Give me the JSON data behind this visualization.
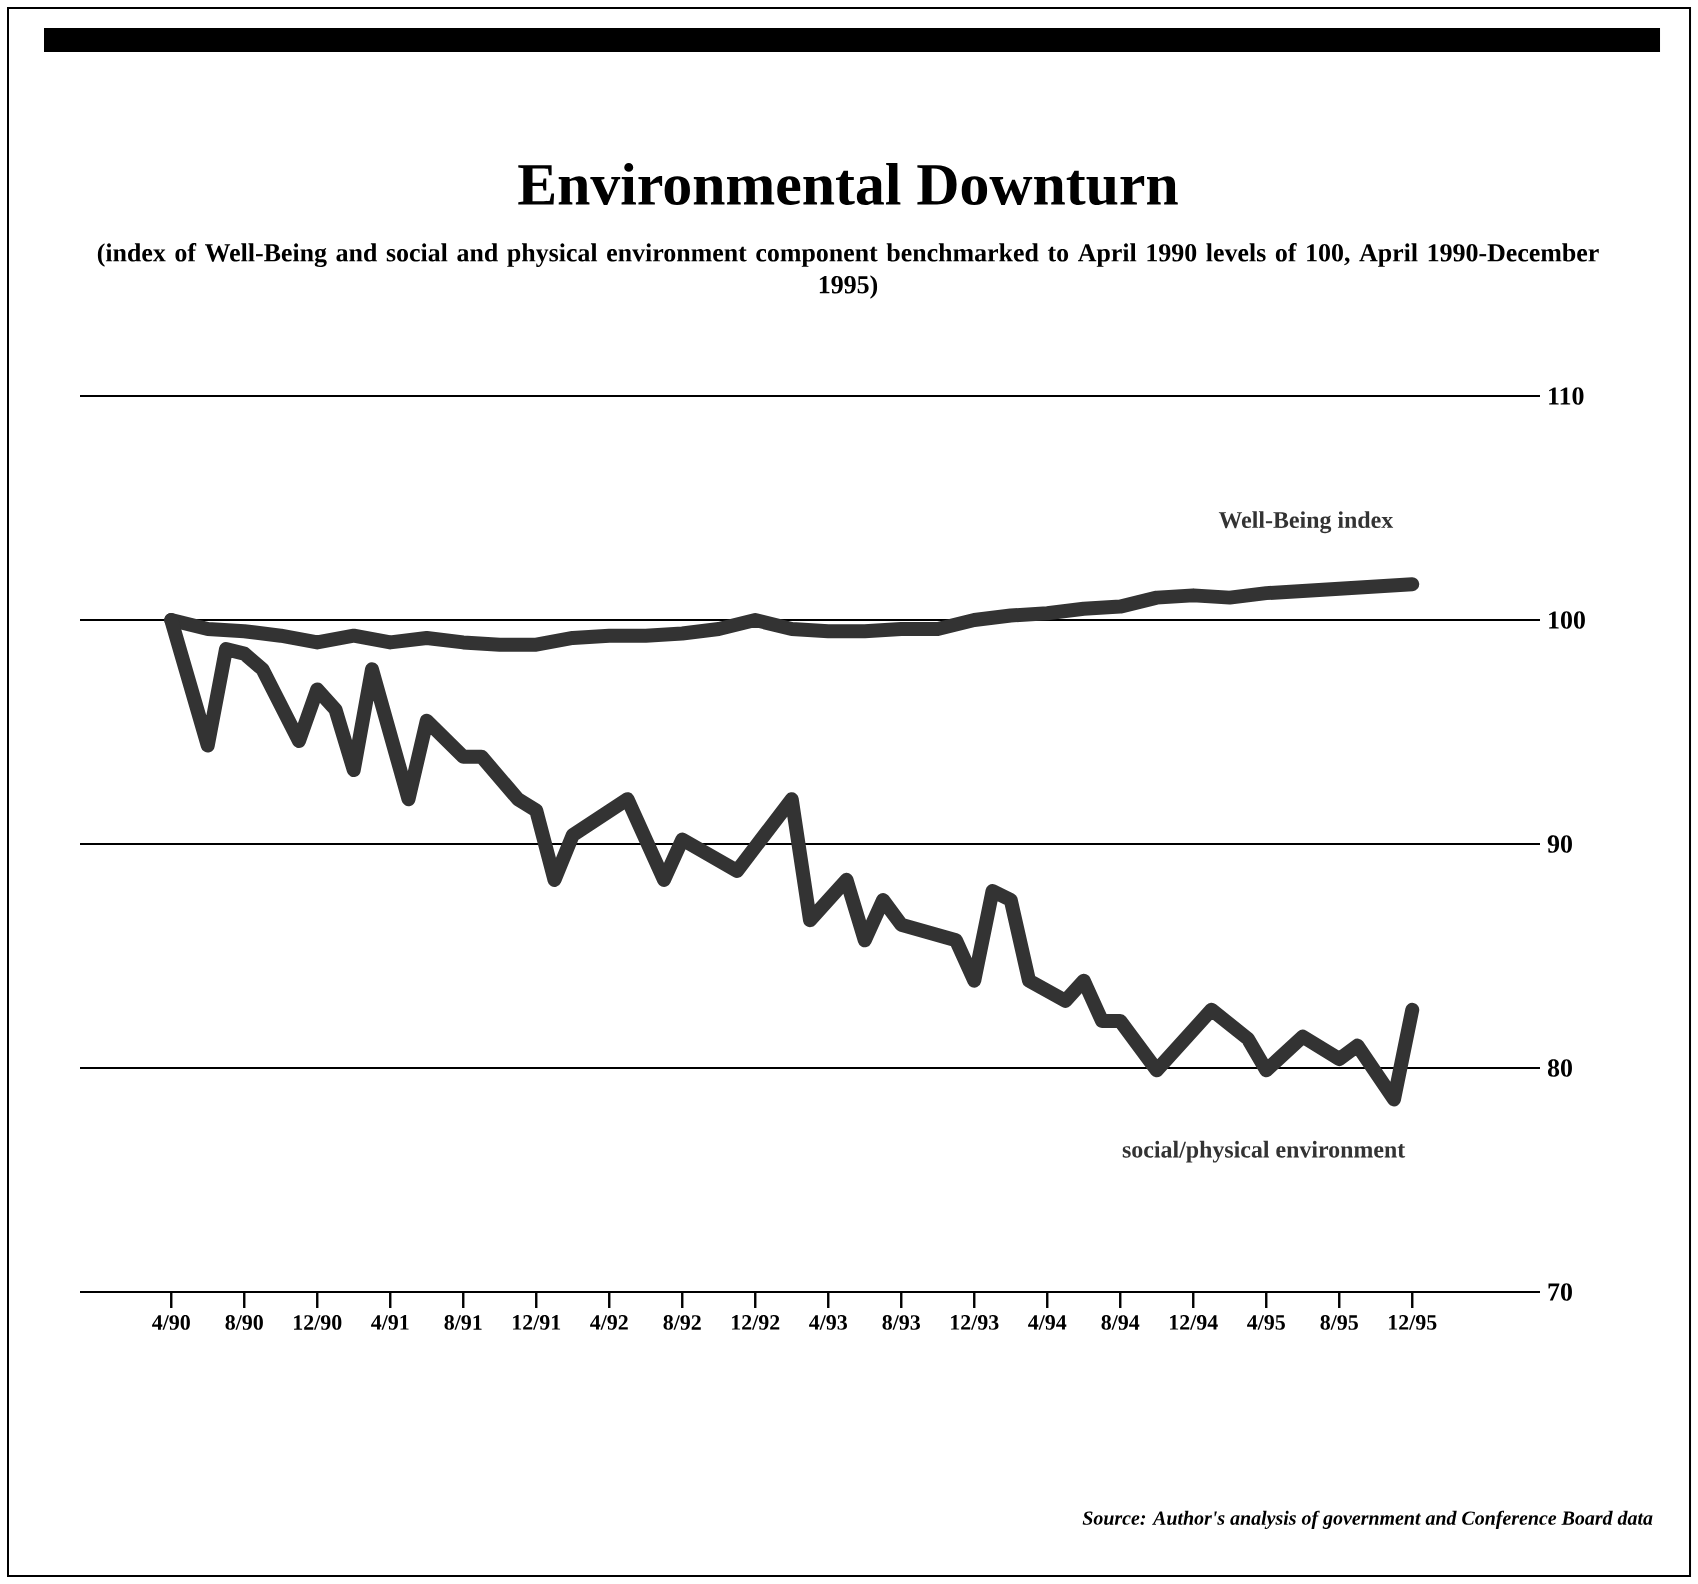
{
  "chart_data": {
    "type": "line",
    "title": "Environmental Downturn",
    "subtitle": "(index of Well-Being and social and physical environment component benchmarked to April 1990 levels of 100, April 1990-December 1995)",
    "xlim": [
      "1989-11",
      "1996-07"
    ],
    "xticks": [
      {
        "value": "1990-04",
        "label": "4/90"
      },
      {
        "value": "1990-08",
        "label": "8/90"
      },
      {
        "value": "1990-12",
        "label": "12/90"
      },
      {
        "value": "1991-04",
        "label": "4/91"
      },
      {
        "value": "1991-08",
        "label": "8/91"
      },
      {
        "value": "1991-12",
        "label": "12/91"
      },
      {
        "value": "1992-04",
        "label": "4/92"
      },
      {
        "value": "1992-08",
        "label": "8/92"
      },
      {
        "value": "1992-12",
        "label": "12/92"
      },
      {
        "value": "1993-04",
        "label": "4/93"
      },
      {
        "value": "1993-08",
        "label": "8/93"
      },
      {
        "value": "1993-12",
        "label": "12/93"
      },
      {
        "value": "1994-04",
        "label": "4/94"
      },
      {
        "value": "1994-08",
        "label": "8/94"
      },
      {
        "value": "1994-12",
        "label": "12/94"
      },
      {
        "value": "1995-04",
        "label": "4/95"
      },
      {
        "value": "1995-08",
        "label": "8/95"
      },
      {
        "value": "1995-12",
        "label": "12/95"
      }
    ],
    "ylim": [
      70,
      110
    ],
    "yticks": [
      70,
      80,
      90,
      100,
      110
    ],
    "grid": "y",
    "legend": false,
    "marker": "none",
    "line_style": "solid",
    "series": [
      {
        "name": "Well-Being index",
        "color": "#333333",
        "x": [
          "1990-04",
          "1990-06",
          "1990-08",
          "1990-10",
          "1990-12",
          "1991-02",
          "1991-04",
          "1991-06",
          "1991-08",
          "1991-10",
          "1991-12",
          "1992-02",
          "1992-04",
          "1992-06",
          "1992-08",
          "1992-10",
          "1992-12",
          "1993-02",
          "1993-04",
          "1993-06",
          "1993-08",
          "1993-10",
          "1993-12",
          "1994-02",
          "1994-04",
          "1994-06",
          "1994-08",
          "1994-10",
          "1994-12",
          "1995-02",
          "1995-04",
          "1995-06",
          "1995-08",
          "1995-10",
          "1995-12"
        ],
        "values": [
          100,
          99.6,
          99.5,
          99.3,
          99.0,
          99.3,
          99.0,
          99.2,
          99.0,
          98.9,
          98.9,
          99.2,
          99.3,
          99.3,
          99.4,
          99.6,
          100.0,
          99.6,
          99.5,
          99.5,
          99.6,
          99.6,
          100.0,
          100.2,
          100.3,
          100.5,
          100.6,
          101.0,
          101.1,
          101.0,
          101.2,
          101.3,
          101.4,
          101.5,
          101.6
        ]
      },
      {
        "name": "social/physical environment",
        "color": "#333333",
        "x": [
          "1990-04",
          "1990-06",
          "1990-07",
          "1990-08",
          "1990-09",
          "1990-11",
          "1990-12",
          "1991-01",
          "1991-02",
          "1991-03",
          "1991-05",
          "1991-06",
          "1991-08",
          "1991-09",
          "1991-11",
          "1991-12",
          "1992-01",
          "1992-02",
          "1992-05",
          "1992-07",
          "1992-08",
          "1992-11",
          "1993-02",
          "1993-03",
          "1993-05",
          "1993-06",
          "1993-07",
          "1993-08",
          "1993-11",
          "1993-12",
          "1994-01",
          "1994-02",
          "1994-03",
          "1994-05",
          "1994-06",
          "1994-07",
          "1994-08",
          "1994-10",
          "1995-01",
          "1995-03",
          "1995-04",
          "1995-06",
          "1995-08",
          "1995-09",
          "1995-11",
          "1995-12"
        ],
        "values": [
          100,
          94.4,
          98.7,
          98.5,
          97.8,
          94.6,
          96.9,
          96.0,
          93.3,
          97.8,
          92.0,
          95.5,
          93.9,
          93.9,
          92.0,
          91.5,
          88.4,
          90.4,
          92.0,
          88.4,
          90.2,
          88.8,
          92.0,
          86.6,
          88.4,
          85.7,
          87.5,
          86.4,
          85.7,
          83.9,
          87.9,
          87.5,
          83.9,
          83.0,
          83.9,
          82.1,
          82.1,
          79.9,
          82.6,
          81.3,
          79.9,
          81.4,
          80.4,
          81.0,
          78.6,
          82.6
        ]
      }
    ],
    "annotations": [
      "Source: Author's analysis of government and Conference Board data"
    ]
  }
}
